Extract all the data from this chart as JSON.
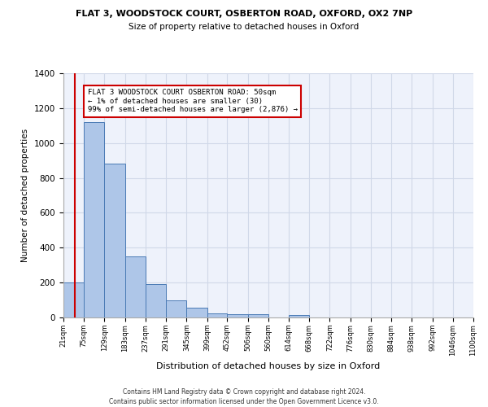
{
  "title_line1": "FLAT 3, WOODSTOCK COURT, OSBERTON ROAD, OXFORD, OX2 7NP",
  "title_line2": "Size of property relative to detached houses in Oxford",
  "xlabel": "Distribution of detached houses by size in Oxford",
  "ylabel": "Number of detached properties",
  "footer_line1": "Contains HM Land Registry data © Crown copyright and database right 2024.",
  "footer_line2": "Contains public sector information licensed under the Open Government Licence v3.0.",
  "annotation_line1": "FLAT 3 WOODSTOCK COURT OSBERTON ROAD: 50sqm",
  "annotation_line2": "← 1% of detached houses are smaller (30)",
  "annotation_line3": "99% of semi-detached houses are larger (2,876) →",
  "property_size": 50,
  "bar_edges": [
    21,
    75,
    129,
    183,
    237,
    291,
    345,
    399,
    452,
    506,
    560,
    614,
    668,
    722,
    776,
    830,
    884,
    938,
    992,
    1046,
    1100
  ],
  "bar_heights": [
    200,
    1120,
    880,
    350,
    190,
    100,
    55,
    25,
    20,
    18,
    0,
    15,
    0,
    0,
    0,
    0,
    0,
    0,
    0,
    0
  ],
  "bar_color": "#aec6e8",
  "bar_edge_color": "#4a7ab5",
  "red_line_color": "#cc0000",
  "annotation_box_color": "#cc0000",
  "grid_color": "#d0d8e8",
  "ylim": [
    0,
    1400
  ],
  "background_color": "#eef2fb",
  "fig_bg_color": "#ffffff"
}
